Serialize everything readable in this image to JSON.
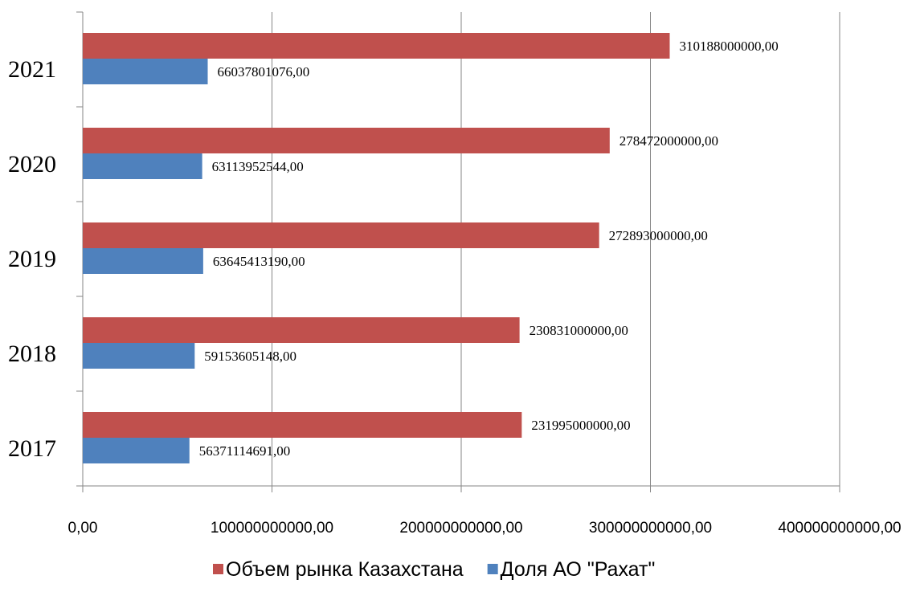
{
  "chart_data": {
    "type": "bar",
    "orientation": "horizontal",
    "categories": [
      "2017",
      "2018",
      "2019",
      "2020",
      "2021"
    ],
    "series": [
      {
        "name": "Объем рынка Казахстана",
        "color": "#c0504d",
        "values": [
          231995000000,
          230831000000,
          272893000000,
          278472000000,
          310188000000
        ],
        "labels": [
          "231995000000,00",
          "230831000000,00",
          "272893000000,00",
          "278472000000,00",
          "310188000000,00"
        ]
      },
      {
        "name": "Доля АО \"Рахат\"",
        "color": "#4f81bd",
        "values": [
          56371114691,
          59153605148,
          63645413190,
          63113952544,
          66037801076
        ],
        "labels": [
          "56371114691,00",
          "59153605148,00",
          "63645413190,00",
          "63113952544,00",
          "66037801076,00"
        ]
      }
    ],
    "xlim": [
      0,
      400000000000
    ],
    "x_ticks": [
      0,
      100000000000,
      200000000000,
      300000000000,
      400000000000
    ],
    "x_tick_labels": [
      "0,00",
      "100000000000,00",
      "200000000000,00",
      "300000000000,00",
      "400000000000,00"
    ],
    "grid": true,
    "legend_position": "bottom"
  }
}
